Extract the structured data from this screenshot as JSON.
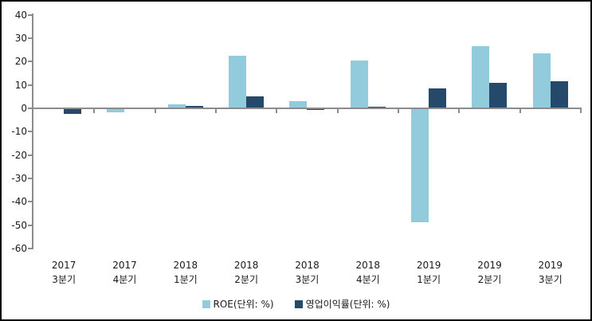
{
  "chart_data": {
    "type": "bar",
    "title": "",
    "xlabel": "",
    "ylabel": "",
    "ylim": [
      -60,
      40
    ],
    "ytick_step": 10,
    "grid": false,
    "legend_position": "bottom-center",
    "axis_color": "#8c8c8c",
    "text_color": "#1a1a1a",
    "categories": [
      {
        "year": "2017",
        "quarter": "3분기"
      },
      {
        "year": "2017",
        "quarter": "4분기"
      },
      {
        "year": "2018",
        "quarter": "1분기"
      },
      {
        "year": "2018",
        "quarter": "2분기"
      },
      {
        "year": "2018",
        "quarter": "3분기"
      },
      {
        "year": "2018",
        "quarter": "4분기"
      },
      {
        "year": "2019",
        "quarter": "1분기"
      },
      {
        "year": "2019",
        "quarter": "2분기"
      },
      {
        "year": "2019",
        "quarter": "3분기"
      }
    ],
    "series": [
      {
        "name": "ROE(단위: %)",
        "color": "#92cbdc",
        "values": [
          0,
          -1.2,
          1.6,
          22.5,
          3.2,
          20.5,
          -48.5,
          26.7,
          23.5
        ]
      },
      {
        "name": "영업이익률(단위: %)",
        "color": "#24496b",
        "values": [
          -2,
          0,
          0.9,
          5,
          -0.5,
          0.8,
          8.6,
          11,
          11.6
        ]
      }
    ]
  },
  "legend": {
    "roe_label": "ROE(단위: %)",
    "opmargin_label": "영업이익률(단위: %)"
  }
}
